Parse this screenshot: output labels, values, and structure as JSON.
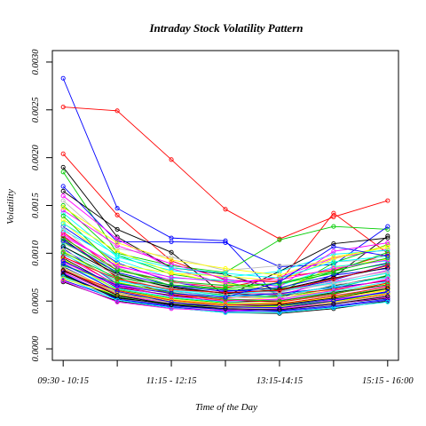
{
  "chart_data": {
    "type": "line",
    "title": "Intraday Stock Volatility Pattern",
    "xlabel": "Time of the Day",
    "ylabel": "Volatility",
    "x_positions": [
      1,
      2,
      3,
      4,
      5,
      6,
      7
    ],
    "x_tick_labels": [
      {
        "pos": 1,
        "label": "09:30 - 10:15"
      },
      {
        "pos": 3,
        "label": "11:15 - 12:15"
      },
      {
        "pos": 5,
        "label": "13:15-14:15"
      },
      {
        "pos": 7,
        "label": "15:15 - 16:00"
      }
    ],
    "xlim": [
      0.8,
      7.2
    ],
    "ylim": [
      -0.00012,
      0.00312
    ],
    "y_ticks": [
      {
        "value": 0.0,
        "label": "0.0000"
      },
      {
        "value": 0.0005,
        "label": "0.0005"
      },
      {
        "value": 0.001,
        "label": "0.0010"
      },
      {
        "value": 0.0015,
        "label": "0.0015"
      },
      {
        "value": 0.002,
        "label": "0.0020"
      },
      {
        "value": 0.0025,
        "label": "0.0025"
      },
      {
        "value": 0.003,
        "label": "0.0030"
      }
    ],
    "marker": "open-circle",
    "grid": false,
    "legend": "none",
    "palette": [
      "#000000",
      "#ff0000",
      "#00cd00",
      "#0000ff",
      "#00ffff",
      "#ff00ff",
      "#ffff00",
      "#bebebe"
    ],
    "series": [
      {
        "color": "#0000ff",
        "values": [
          0.00283,
          0.00147,
          0.00116,
          0.00113,
          0.00052,
          0.00078,
          0.0009
        ]
      },
      {
        "color": "#ff0000",
        "values": [
          0.00253,
          0.00249,
          0.00198,
          0.00146,
          0.00115,
          0.00138,
          0.00155
        ]
      },
      {
        "color": "#ff0000",
        "values": [
          0.00204,
          0.0014,
          0.00092,
          0.00072,
          0.0007,
          0.00142,
          0.001
        ]
      },
      {
        "color": "#000000",
        "values": [
          0.0019,
          0.00117,
          0.00085,
          0.00078,
          0.00061,
          0.00075,
          0.00118
        ]
      },
      {
        "color": "#00cd00",
        "values": [
          0.00185,
          0.001,
          0.00087,
          0.0008,
          0.00114,
          0.00128,
          0.00125
        ]
      },
      {
        "color": "#0000ff",
        "values": [
          0.0017,
          0.00112,
          0.00112,
          0.00111,
          0.00086,
          0.00088,
          0.00128
        ]
      },
      {
        "color": "#000000",
        "values": [
          0.00165,
          0.00125,
          0.00101,
          0.00055,
          0.00081,
          0.0011,
          0.00116
        ]
      },
      {
        "color": "#ff00ff",
        "values": [
          0.0016,
          0.00115,
          0.00084,
          0.00068,
          0.00075,
          0.00095,
          0.00104
        ]
      },
      {
        "color": "#bebebe",
        "values": [
          0.00155,
          0.00105,
          0.00096,
          0.00082,
          0.00087,
          0.00091,
          0.00094
        ]
      },
      {
        "color": "#00cd00",
        "values": [
          0.0015,
          0.00098,
          0.00078,
          0.0007,
          0.00058,
          0.0009,
          0.00109
        ]
      },
      {
        "color": "#00ffff",
        "values": [
          0.00142,
          0.00096,
          0.00082,
          0.00075,
          0.00081,
          0.00099,
          0.00103
        ]
      },
      {
        "color": "#ffff00",
        "values": [
          0.00135,
          0.00102,
          0.0008,
          0.00068,
          0.00062,
          0.00085,
          0.00094
        ]
      },
      {
        "color": "#0000ff",
        "values": [
          0.00128,
          0.0009,
          0.0007,
          0.00061,
          0.0006,
          0.00072,
          0.00088
        ]
      },
      {
        "color": "#ff0000",
        "values": [
          0.00122,
          0.00082,
          0.0007,
          0.00064,
          0.00075,
          0.00082,
          0.00099
        ]
      },
      {
        "color": "#ff00ff",
        "values": [
          0.00118,
          0.00087,
          0.00072,
          0.00059,
          0.00057,
          0.0007,
          0.00082
        ]
      },
      {
        "color": "#000000",
        "values": [
          0.00115,
          0.00075,
          0.00065,
          0.00058,
          0.00055,
          0.00066,
          0.00076
        ]
      },
      {
        "color": "#00cd00",
        "values": [
          0.00112,
          0.00079,
          0.00063,
          0.00056,
          0.00054,
          0.00063,
          0.00077
        ]
      },
      {
        "color": "#bebebe",
        "values": [
          0.0011,
          0.00085,
          0.00069,
          0.00067,
          0.0006,
          0.00068,
          0.0008
        ]
      },
      {
        "color": "#00ffff",
        "values": [
          0.00108,
          0.00072,
          0.00062,
          0.00057,
          0.00061,
          0.00069,
          0.00079
        ]
      },
      {
        "color": "#0000ff",
        "values": [
          0.00105,
          0.00068,
          0.0006,
          0.00055,
          0.00058,
          0.00064,
          0.00071
        ]
      },
      {
        "color": "#ffff00",
        "values": [
          0.00102,
          0.0007,
          0.00058,
          0.0005,
          0.00054,
          0.00061,
          0.00068
        ]
      },
      {
        "color": "#ff0000",
        "values": [
          0.001,
          0.00066,
          0.00055,
          0.00053,
          0.00057,
          0.00062,
          0.00072
        ]
      },
      {
        "color": "#ff00ff",
        "values": [
          0.00097,
          0.00067,
          0.00058,
          0.00052,
          0.00051,
          0.00058,
          0.00066
        ]
      },
      {
        "color": "#000000",
        "values": [
          0.00095,
          0.00064,
          0.00056,
          0.00049,
          0.0005,
          0.00059,
          0.00067
        ]
      },
      {
        "color": "#00cd00",
        "values": [
          0.00093,
          0.00062,
          0.00053,
          0.00048,
          0.00047,
          0.00055,
          0.00063
        ]
      },
      {
        "color": "#bebebe",
        "values": [
          0.0009,
          0.0006,
          0.00052,
          0.00047,
          0.00049,
          0.00056,
          0.00064
        ]
      },
      {
        "color": "#00ffff",
        "values": [
          0.00088,
          0.00063,
          0.00054,
          0.00049,
          0.00052,
          0.0006,
          0.0007
        ]
      },
      {
        "color": "#0000ff",
        "values": [
          0.00086,
          0.00058,
          0.0005,
          0.00046,
          0.00045,
          0.00052,
          0.00059
        ]
      },
      {
        "color": "#ffff00",
        "values": [
          0.00085,
          0.00059,
          0.00051,
          0.00044,
          0.00046,
          0.00054,
          0.00062
        ]
      },
      {
        "color": "#ff0000",
        "values": [
          0.00083,
          0.00057,
          0.00049,
          0.00045,
          0.00043,
          0.00049,
          0.00057
        ]
      },
      {
        "color": "#ff00ff",
        "values": [
          0.0008,
          0.00056,
          0.00048,
          0.00042,
          0.00044,
          0.00051,
          0.0006
        ]
      },
      {
        "color": "#000000",
        "values": [
          0.00078,
          0.00054,
          0.00046,
          0.00041,
          0.0004,
          0.00047,
          0.00053
        ]
      },
      {
        "color": "#00cd00",
        "values": [
          0.00076,
          0.00055,
          0.00047,
          0.00043,
          0.00045,
          0.0005,
          0.00058
        ]
      },
      {
        "color": "#bebebe",
        "values": [
          0.00074,
          0.00053,
          0.00045,
          0.0004,
          0.00041,
          0.00046,
          0.00055
        ]
      },
      {
        "color": "#0000ff",
        "values": [
          0.00072,
          0.00052,
          0.00044,
          0.00039,
          0.0004,
          0.00045,
          0.00052
        ]
      },
      {
        "color": "#000000",
        "values": [
          0.0007,
          0.0005,
          0.00043,
          0.00038,
          0.00037,
          0.00042,
          0.0005
        ]
      },
      {
        "color": "#00ffff",
        "values": [
          0.00124,
          0.00093,
          0.00074,
          0.00072,
          0.00066,
          0.00086,
          0.00092
        ]
      },
      {
        "color": "#ffff00",
        "values": [
          0.00132,
          0.00088,
          0.00079,
          0.00076,
          0.00071,
          0.00094,
          0.00108
        ]
      },
      {
        "color": "#ff00ff",
        "values": [
          0.00145,
          0.00108,
          0.00089,
          0.00073,
          0.00065,
          0.00102,
          0.00111
        ]
      },
      {
        "color": "#00cd00",
        "values": [
          0.00139,
          0.00084,
          0.00066,
          0.00062,
          0.00063,
          0.00081,
          0.00101
        ]
      },
      {
        "color": "#bebebe",
        "values": [
          0.00127,
          0.00076,
          0.0006,
          0.00054,
          0.00053,
          0.00067,
          0.00074
        ]
      },
      {
        "color": "#ff0000",
        "values": [
          0.00118,
          0.00074,
          0.00057,
          0.00051,
          0.00049,
          0.00057,
          0.00069
        ]
      },
      {
        "color": "#0000ff",
        "values": [
          0.00113,
          0.0008,
          0.00066,
          0.0006,
          0.00064,
          0.00077,
          0.00084
        ]
      },
      {
        "color": "#000000",
        "values": [
          0.00107,
          0.00078,
          0.00064,
          0.00058,
          0.00062,
          0.00074,
          0.00085
        ]
      },
      {
        "color": "#00ffff",
        "values": [
          0.00099,
          0.00071,
          0.00061,
          0.00055,
          0.00056,
          0.00065,
          0.00075
        ]
      },
      {
        "color": "#ffff00",
        "values": [
          0.00094,
          0.00061,
          0.00052,
          0.00047,
          0.00048,
          0.00053,
          0.00061
        ]
      },
      {
        "color": "#ff00ff",
        "values": [
          0.00091,
          0.00065,
          0.00055,
          0.0005,
          0.00052,
          0.00061,
          0.00073
        ]
      },
      {
        "color": "#00cd00",
        "values": [
          0.00087,
          0.00069,
          0.00059,
          0.00052,
          0.0005,
          0.00058,
          0.00067
        ]
      },
      {
        "color": "#bebebe",
        "values": [
          0.00084,
          0.00058,
          0.00048,
          0.00043,
          0.00042,
          0.00048,
          0.00056
        ]
      },
      {
        "color": "#ff0000",
        "values": [
          0.00081,
          0.00061,
          0.00051,
          0.00046,
          0.00047,
          0.00055,
          0.00065
        ]
      },
      {
        "color": "#0000ff",
        "values": [
          0.00079,
          0.00052,
          0.00045,
          0.00041,
          0.00039,
          0.00044,
          0.00051
        ]
      },
      {
        "color": "#000000",
        "values": [
          0.00077,
          0.00053,
          0.00047,
          0.00044,
          0.00046,
          0.00053,
          0.00063
        ]
      },
      {
        "color": "#00ffff",
        "values": [
          0.00075,
          0.00051,
          0.00043,
          0.00038,
          0.00038,
          0.00043,
          0.00049
        ]
      },
      {
        "color": "#ffff00",
        "values": [
          0.00073,
          0.00057,
          0.0005,
          0.00045,
          0.00044,
          0.00049,
          0.00058
        ]
      },
      {
        "color": "#ff00ff",
        "values": [
          0.00071,
          0.00049,
          0.00042,
          0.0004,
          0.00042,
          0.00047,
          0.00054
        ]
      },
      {
        "color": "#00cd00",
        "values": [
          0.00116,
          0.00082,
          0.00071,
          0.00066,
          0.00068,
          0.00079,
          0.00089
        ]
      },
      {
        "color": "#bebebe",
        "values": [
          0.00103,
          0.00077,
          0.00063,
          0.00057,
          0.00059,
          0.00071,
          0.00081
        ]
      },
      {
        "color": "#ff0000",
        "values": [
          0.00096,
          0.00073,
          0.00062,
          0.00059,
          0.00061,
          0.00073,
          0.00087
        ]
      },
      {
        "color": "#0000ff",
        "values": [
          0.00089,
          0.0006,
          0.00049,
          0.00044,
          0.00043,
          0.0005,
          0.0006
        ]
      },
      {
        "color": "#000000",
        "values": [
          0.00082,
          0.00056,
          0.00046,
          0.00042,
          0.00041,
          0.00047,
          0.00055
        ]
      },
      {
        "color": "#00ffff",
        "values": [
          0.00131,
          0.00098,
          0.00085,
          0.00079,
          0.00074,
          0.00091,
          0.00097
        ]
      },
      {
        "color": "#ffff00",
        "values": [
          0.00148,
          0.00111,
          0.00093,
          0.00084,
          0.00077,
          0.00096,
          0.00106
        ]
      },
      {
        "color": "#ff00ff",
        "values": [
          0.0012,
          0.00086,
          0.00075,
          0.0007,
          0.00072,
          0.00084,
          0.00093
        ]
      },
      {
        "color": "#00cd00",
        "values": [
          0.00101,
          0.00074,
          0.00067,
          0.00063,
          0.00069,
          0.00081,
          0.00095
        ]
      },
      {
        "color": "#0000ff",
        "values": [
          0.00092,
          0.00066,
          0.00058,
          0.00054,
          0.0007,
          0.00107,
          0.00097
        ]
      }
    ]
  }
}
